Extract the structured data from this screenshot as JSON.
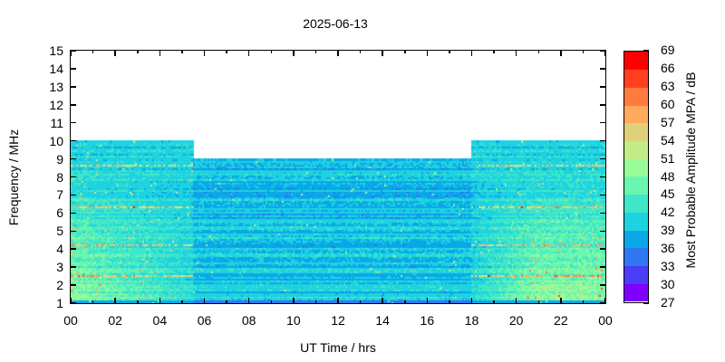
{
  "chart_data": {
    "type": "heatmap",
    "title": "2025-06-13",
    "xlabel": "UT Time / hrs",
    "ylabel": "Frequency / MHz",
    "xlim": [
      0,
      24
    ],
    "ylim": [
      1,
      15
    ],
    "x_ticks": [
      "00",
      "02",
      "04",
      "06",
      "08",
      "10",
      "12",
      "14",
      "16",
      "18",
      "20",
      "22",
      "00"
    ],
    "y_ticks": [
      "1",
      "2",
      "3",
      "4",
      "5",
      "6",
      "7",
      "8",
      "9",
      "10",
      "11",
      "12",
      "13",
      "14",
      "15"
    ],
    "coverage": [
      {
        "t_start": 0,
        "t_end": 5.5,
        "f_max": 10
      },
      {
        "t_start": 5.5,
        "t_end": 18,
        "f_max": 9
      },
      {
        "t_start": 18,
        "t_end": 24,
        "f_max": 10
      }
    ],
    "interference_lines_mhz": [
      2.5,
      4.2,
      6.3,
      8.6
    ],
    "colorbar": {
      "label": "Most Probable Amplitude MPA / dB",
      "ticks": [
        "27",
        "30",
        "33",
        "36",
        "39",
        "42",
        "45",
        "48",
        "51",
        "54",
        "57",
        "60",
        "63",
        "66",
        "69"
      ],
      "range": [
        27,
        69
      ],
      "colors": [
        "#8000ff",
        "#4c3cf5",
        "#2f78f2",
        "#0aa8e8",
        "#1ed2e0",
        "#40e6c8",
        "#6af5b0",
        "#98fb98",
        "#c2ec88",
        "#e0d07a",
        "#ffab5e",
        "#ff7a40",
        "#ff4020",
        "#ff0000"
      ]
    }
  }
}
